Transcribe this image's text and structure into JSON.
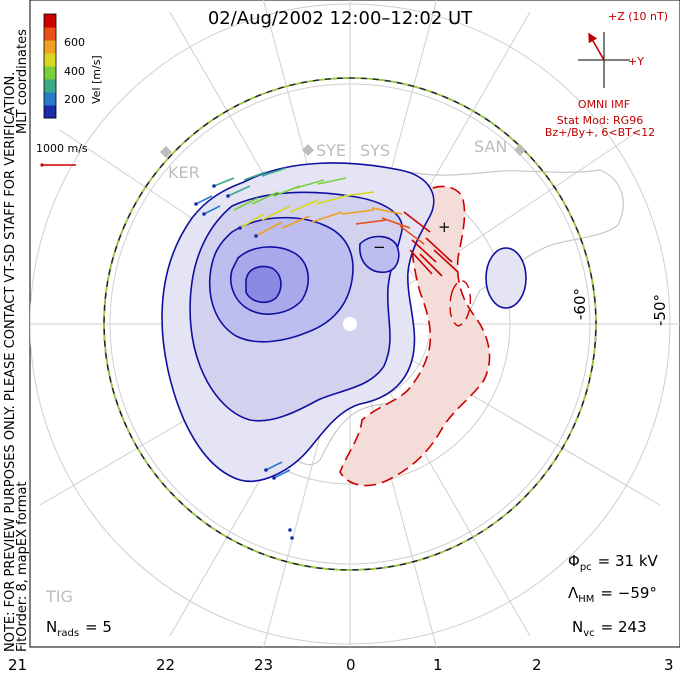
{
  "title": "02/Aug/2002 12:00–12:02 UT",
  "notice_line1": "NOTE: FOR PREVIEW PURPOSES ONLY. PLEASE CONTACT VT-SD STAFF FOR VERIFICATION.",
  "notice_line2": "FitOrder: 8, mapEX format",
  "coord_label": "MLT coordinates",
  "colorbar": {
    "axis_label": "Vel [m/s]",
    "ticks": [
      "600",
      "400",
      "200"
    ],
    "colors": [
      "#1a2aa8",
      "#2a7acc",
      "#3aaa88",
      "#7ad03a",
      "#d8d820",
      "#f0a020",
      "#e85018",
      "#cc0000"
    ]
  },
  "scale_label": "1000 m/s",
  "imf": {
    "z_label": "+Z (10 nT)",
    "y_label": "+Y",
    "source": "OMNI IMF",
    "model_line1": "Stat Mod: RG96",
    "model_line2": "Bz+/By+, 6<BT<12"
  },
  "stations": [
    "KER",
    "SYE",
    "SYS",
    "SAN",
    "TIG"
  ],
  "lat_labels": [
    "-50°",
    "-60°"
  ],
  "mlt_labels": [
    "21",
    "22",
    "23",
    "0",
    "1",
    "2",
    "3"
  ],
  "potential_markers": [
    "−",
    "+"
  ],
  "stats": {
    "phi_pc_symbol": "Φ",
    "phi_pc_sub": "pc",
    "phi_pc_value": "= 31 kV",
    "lambda_symbol": "Λ",
    "lambda_sub": "HM",
    "lambda_value": "= −59°",
    "nvc_symbol": "N",
    "nvc_sub": "vc",
    "nvc_value": "= 243",
    "nrads_symbol": "N",
    "nrads_sub": "rads",
    "nrads_value": "= 5"
  },
  "colors": {
    "negative_cell": "#1010a0",
    "positive_cell": "#cc0000",
    "hm_boundary_a": "#222222",
    "hm_boundary_b": "#9ad23a"
  }
}
